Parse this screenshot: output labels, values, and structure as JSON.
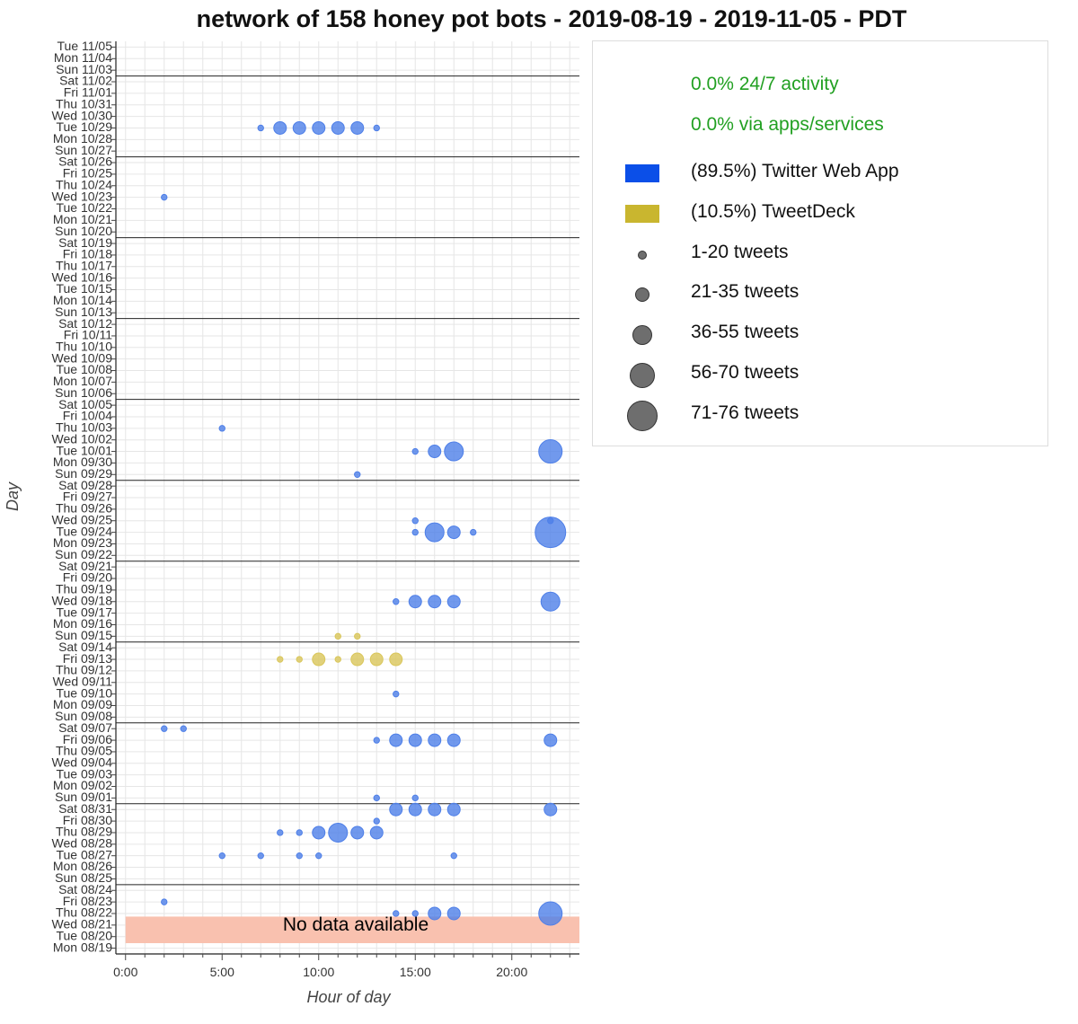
{
  "title": "network of 158 honey pot bots - 2019-08-19 - 2019-11-05 - PDT",
  "legend": {
    "stats": [
      "0.0% 24/7 activity",
      "0.0% via apps/services"
    ],
    "sources": [
      {
        "label": "(89.5%) Twitter Web App",
        "color": "#0b4fe8"
      },
      {
        "label": "(10.5%) TweetDeck",
        "color": "#c9b62f"
      }
    ],
    "sizes": [
      {
        "label": "1-20 tweets",
        "level": 1
      },
      {
        "label": "21-35 tweets",
        "level": 2
      },
      {
        "label": "36-55 tweets",
        "level": 3
      },
      {
        "label": "56-70 tweets",
        "level": 4
      },
      {
        "label": "71-76 tweets",
        "level": 5
      }
    ]
  },
  "chart_data": {
    "type": "scatter",
    "title": "network of 158 honey pot bots - 2019-08-19 - 2019-11-05 - PDT",
    "xlabel": "Hour of day",
    "ylabel": "Day",
    "xlim": [
      -0.5,
      23.5
    ],
    "x_ticks": [
      0,
      5,
      10,
      15,
      20
    ],
    "x_tick_labels": [
      "0:00",
      "5:00",
      "10:00",
      "15:00",
      "20:00"
    ],
    "grid": true,
    "legend_position": "right",
    "days": [
      "Mon 08/19",
      "Tue 08/20",
      "Wed 08/21",
      "Thu 08/22",
      "Fri 08/23",
      "Sat 08/24",
      "Sun 08/25",
      "Mon 08/26",
      "Tue 08/27",
      "Wed 08/28",
      "Thu 08/29",
      "Fri 08/30",
      "Sat 08/31",
      "Sun 09/01",
      "Mon 09/02",
      "Tue 09/03",
      "Wed 09/04",
      "Thu 09/05",
      "Fri 09/06",
      "Sat 09/07",
      "Sun 09/08",
      "Mon 09/09",
      "Tue 09/10",
      "Wed 09/11",
      "Thu 09/12",
      "Fri 09/13",
      "Sat 09/14",
      "Sun 09/15",
      "Mon 09/16",
      "Tue 09/17",
      "Wed 09/18",
      "Thu 09/19",
      "Fri 09/20",
      "Sat 09/21",
      "Sun 09/22",
      "Mon 09/23",
      "Tue 09/24",
      "Wed 09/25",
      "Thu 09/26",
      "Fri 09/27",
      "Sat 09/28",
      "Sun 09/29",
      "Mon 09/30",
      "Tue 10/01",
      "Wed 10/02",
      "Thu 10/03",
      "Fri 10/04",
      "Sat 10/05",
      "Sun 10/06",
      "Mon 10/07",
      "Tue 10/08",
      "Wed 10/09",
      "Thu 10/10",
      "Fri 10/11",
      "Sat 10/12",
      "Sun 10/13",
      "Mon 10/14",
      "Tue 10/15",
      "Wed 10/16",
      "Thu 10/17",
      "Fri 10/18",
      "Sat 10/19",
      "Sun 10/20",
      "Mon 10/21",
      "Tue 10/22",
      "Wed 10/23",
      "Thu 10/24",
      "Fri 10/25",
      "Sat 10/26",
      "Sun 10/27",
      "Mon 10/28",
      "Tue 10/29",
      "Wed 10/30",
      "Thu 10/31",
      "Fri 11/01",
      "Sat 11/02",
      "Sun 11/03",
      "Mon 11/04",
      "Tue 11/05"
    ],
    "no_data": {
      "label": "No data available",
      "days": [
        "Mon 08/19",
        "Tue 08/20",
        "Wed 08/21"
      ],
      "color": "#f9c1af"
    },
    "series": [
      {
        "name": "Twitter Web App",
        "color": "#4e7fe8",
        "points": [
          {
            "day": "Tue 10/29",
            "hour": 7,
            "size": 1
          },
          {
            "day": "Tue 10/29",
            "hour": 8,
            "size": 3
          },
          {
            "day": "Tue 10/29",
            "hour": 9,
            "size": 3
          },
          {
            "day": "Tue 10/29",
            "hour": 10,
            "size": 3
          },
          {
            "day": "Tue 10/29",
            "hour": 11,
            "size": 3
          },
          {
            "day": "Tue 10/29",
            "hour": 12,
            "size": 3
          },
          {
            "day": "Tue 10/29",
            "hour": 13,
            "size": 1
          },
          {
            "day": "Wed 10/23",
            "hour": 2,
            "size": 1
          },
          {
            "day": "Thu 10/03",
            "hour": 5,
            "size": 1
          },
          {
            "day": "Tue 10/01",
            "hour": 15,
            "size": 1
          },
          {
            "day": "Tue 10/01",
            "hour": 16,
            "size": 3
          },
          {
            "day": "Tue 10/01",
            "hour": 17,
            "size": 4
          },
          {
            "day": "Tue 10/01",
            "hour": 22,
            "size": 5
          },
          {
            "day": "Sun 09/29",
            "hour": 12,
            "size": 1
          },
          {
            "day": "Wed 09/25",
            "hour": 15,
            "size": 1
          },
          {
            "day": "Wed 09/25",
            "hour": 22,
            "size": 1
          },
          {
            "day": "Tue 09/24",
            "hour": 15,
            "size": 1
          },
          {
            "day": "Tue 09/24",
            "hour": 16,
            "size": 4
          },
          {
            "day": "Tue 09/24",
            "hour": 17,
            "size": 3
          },
          {
            "day": "Tue 09/24",
            "hour": 18,
            "size": 1
          },
          {
            "day": "Tue 09/24",
            "hour": 22,
            "size": 6
          },
          {
            "day": "Wed 09/18",
            "hour": 14,
            "size": 1
          },
          {
            "day": "Wed 09/18",
            "hour": 15,
            "size": 3
          },
          {
            "day": "Wed 09/18",
            "hour": 16,
            "size": 3
          },
          {
            "day": "Wed 09/18",
            "hour": 17,
            "size": 3
          },
          {
            "day": "Wed 09/18",
            "hour": 22,
            "size": 4
          },
          {
            "day": "Tue 09/10",
            "hour": 14,
            "size": 1
          },
          {
            "day": "Sat 09/07",
            "hour": 2,
            "size": 1
          },
          {
            "day": "Sat 09/07",
            "hour": 3,
            "size": 1
          },
          {
            "day": "Fri 09/06",
            "hour": 13,
            "size": 1
          },
          {
            "day": "Fri 09/06",
            "hour": 14,
            "size": 3
          },
          {
            "day": "Fri 09/06",
            "hour": 15,
            "size": 3
          },
          {
            "day": "Fri 09/06",
            "hour": 16,
            "size": 3
          },
          {
            "day": "Fri 09/06",
            "hour": 17,
            "size": 3
          },
          {
            "day": "Fri 09/06",
            "hour": 22,
            "size": 3
          },
          {
            "day": "Sun 09/01",
            "hour": 13,
            "size": 1
          },
          {
            "day": "Sun 09/01",
            "hour": 15,
            "size": 1
          },
          {
            "day": "Sat 08/31",
            "hour": 14,
            "size": 3
          },
          {
            "day": "Sat 08/31",
            "hour": 15,
            "size": 3
          },
          {
            "day": "Sat 08/31",
            "hour": 16,
            "size": 3
          },
          {
            "day": "Sat 08/31",
            "hour": 17,
            "size": 3
          },
          {
            "day": "Sat 08/31",
            "hour": 22,
            "size": 3
          },
          {
            "day": "Fri 08/30",
            "hour": 13,
            "size": 1
          },
          {
            "day": "Thu 08/29",
            "hour": 8,
            "size": 1
          },
          {
            "day": "Thu 08/29",
            "hour": 9,
            "size": 1
          },
          {
            "day": "Thu 08/29",
            "hour": 10,
            "size": 3
          },
          {
            "day": "Thu 08/29",
            "hour": 11,
            "size": 4
          },
          {
            "day": "Thu 08/29",
            "hour": 12,
            "size": 3
          },
          {
            "day": "Thu 08/29",
            "hour": 13,
            "size": 3
          },
          {
            "day": "Tue 08/27",
            "hour": 5,
            "size": 1
          },
          {
            "day": "Tue 08/27",
            "hour": 7,
            "size": 1
          },
          {
            "day": "Tue 08/27",
            "hour": 9,
            "size": 1
          },
          {
            "day": "Tue 08/27",
            "hour": 10,
            "size": 1
          },
          {
            "day": "Tue 08/27",
            "hour": 17,
            "size": 1
          },
          {
            "day": "Fri 08/23",
            "hour": 2,
            "size": 1
          },
          {
            "day": "Thu 08/22",
            "hour": 14,
            "size": 1
          },
          {
            "day": "Thu 08/22",
            "hour": 15,
            "size": 1
          },
          {
            "day": "Thu 08/22",
            "hour": 16,
            "size": 3
          },
          {
            "day": "Thu 08/22",
            "hour": 17,
            "size": 3
          },
          {
            "day": "Thu 08/22",
            "hour": 22,
            "size": 5
          }
        ]
      },
      {
        "name": "TweetDeck",
        "color": "#d9c65a",
        "points": [
          {
            "day": "Sun 09/15",
            "hour": 11,
            "size": 1
          },
          {
            "day": "Sun 09/15",
            "hour": 12,
            "size": 1
          },
          {
            "day": "Fri 09/13",
            "hour": 8,
            "size": 1
          },
          {
            "day": "Fri 09/13",
            "hour": 9,
            "size": 1
          },
          {
            "day": "Fri 09/13",
            "hour": 10,
            "size": 3
          },
          {
            "day": "Fri 09/13",
            "hour": 11,
            "size": 1
          },
          {
            "day": "Fri 09/13",
            "hour": 12,
            "size": 3
          },
          {
            "day": "Fri 09/13",
            "hour": 13,
            "size": 3
          },
          {
            "day": "Fri 09/13",
            "hour": 14,
            "size": 3
          }
        ]
      }
    ]
  }
}
